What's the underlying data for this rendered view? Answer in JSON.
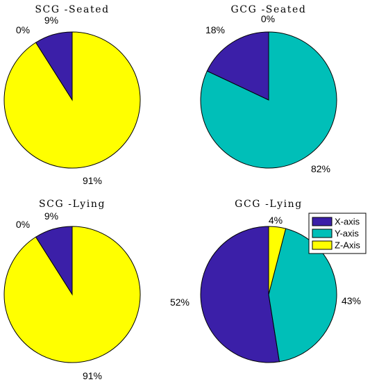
{
  "colors": {
    "x_axis": "#3b1fa8",
    "y_axis": "#00bfb8",
    "z_axis": "#ffff00"
  },
  "legend": {
    "items": [
      {
        "label": "X-axis",
        "color_key": "x_axis"
      },
      {
        "label": "Y-axis",
        "color_key": "y_axis"
      },
      {
        "label": "Z-Axis",
        "color_key": "z_axis"
      }
    ]
  },
  "chart_data": [
    {
      "type": "pie",
      "title": "SCG -Seated",
      "slices": [
        {
          "series": "X-axis",
          "value": 9,
          "label": "9%"
        },
        {
          "series": "Y-axis",
          "value": 0,
          "label": "0%"
        },
        {
          "series": "Z-Axis",
          "value": 91,
          "label": "91%"
        }
      ]
    },
    {
      "type": "pie",
      "title": "GCG -Seated",
      "slices": [
        {
          "series": "X-axis",
          "value": 18,
          "label": "18%"
        },
        {
          "series": "Y-axis",
          "value": 82,
          "label": "82%"
        },
        {
          "series": "Z-Axis",
          "value": 0,
          "label": "0%"
        }
      ]
    },
    {
      "type": "pie",
      "title": "SCG -Lying",
      "slices": [
        {
          "series": "X-axis",
          "value": 9,
          "label": "9%"
        },
        {
          "series": "Y-axis",
          "value": 0,
          "label": "0%"
        },
        {
          "series": "Z-Axis",
          "value": 91,
          "label": "91%"
        }
      ]
    },
    {
      "type": "pie",
      "title": "GCG -Lying",
      "slices": [
        {
          "series": "X-axis",
          "value": 52,
          "label": "52%"
        },
        {
          "series": "Y-axis",
          "value": 43,
          "label": "43%"
        },
        {
          "series": "Z-Axis",
          "value": 4,
          "label": "4%"
        }
      ]
    }
  ]
}
